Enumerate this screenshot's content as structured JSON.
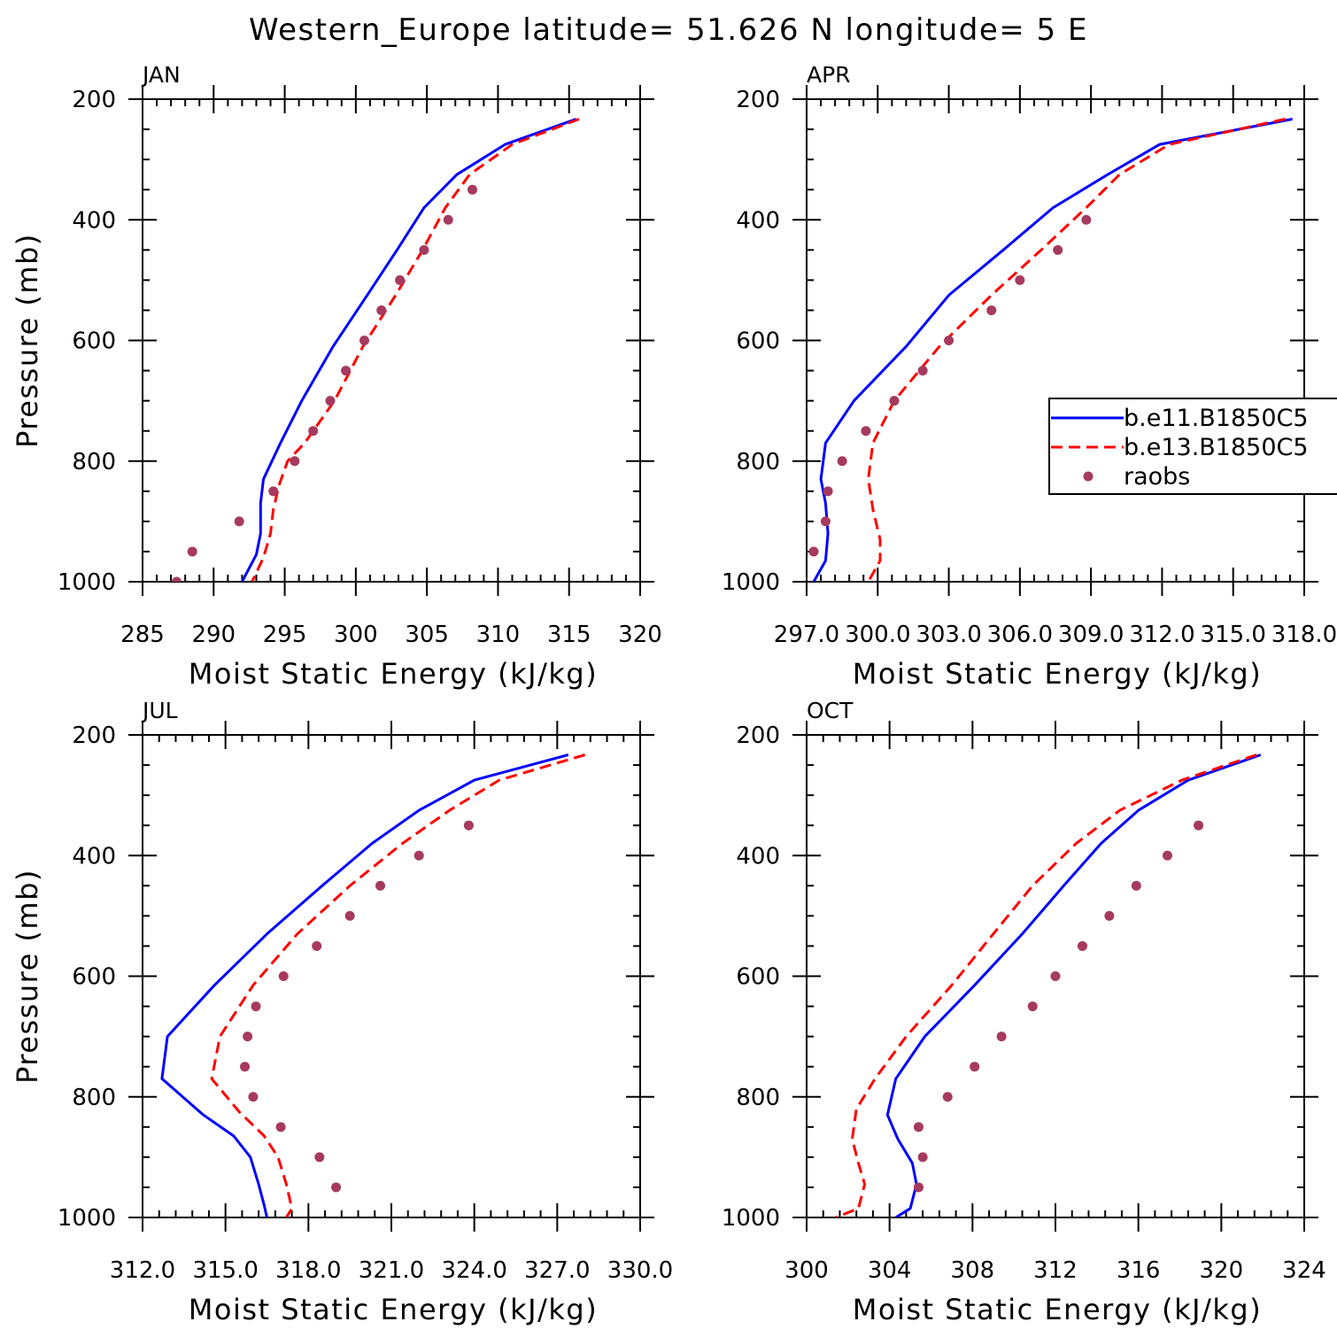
{
  "title": "Western_Europe  latitude= 51.626 N longitude= 5 E",
  "colors": {
    "series1": "#0000ff",
    "series2": "#ff0000",
    "obs": "#a63a5e"
  },
  "legend": {
    "entries": [
      {
        "label": "b.e11.B1850C5",
        "style": "solid",
        "color": "#0000ff"
      },
      {
        "label": "b.e13.B1850C5",
        "style": "dashed",
        "color": "#ff0000"
      },
      {
        "label": "raobs",
        "style": "marker",
        "color": "#a63a5e"
      }
    ]
  },
  "chart_data": [
    {
      "type": "line",
      "panel": "JAN",
      "xlabel": "Moist Static Energy (kJ/kg)",
      "ylabel": "Pressure (mb)",
      "xlim": [
        285,
        320
      ],
      "ylim": [
        200,
        1000
      ],
      "xticks": [
        "285",
        "290",
        "295",
        "300",
        "305",
        "310",
        "315",
        "320"
      ],
      "yticks": [
        "200",
        "400",
        "600",
        "800",
        "1000"
      ],
      "series": [
        {
          "name": "b.e11.B1850C5",
          "x": [
            315.5,
            310.5,
            307.1,
            304.8,
            302.9,
            300.8,
            298.4,
            296.2,
            294.7,
            293.5,
            293.3,
            293.3,
            293.0,
            292.0
          ],
          "y": [
            233,
            275,
            325,
            380,
            450,
            525,
            610,
            700,
            770,
            830,
            870,
            920,
            955,
            1000
          ]
        },
        {
          "name": "b.e13.B1850C5",
          "x": [
            315.7,
            311.0,
            308.0,
            306.3,
            304.7,
            302.8,
            300.5,
            298.5,
            296.4,
            295.2,
            294.6,
            294.2,
            294.0,
            293.5,
            292.7
          ],
          "y": [
            233,
            275,
            325,
            380,
            450,
            525,
            610,
            700,
            770,
            800,
            840,
            880,
            920,
            960,
            1000
          ]
        },
        {
          "name": "raobs",
          "x": [
            308.2,
            306.5,
            304.8,
            303.1,
            301.8,
            300.6,
            299.3,
            298.2,
            297.0,
            295.7,
            294.2,
            291.8,
            288.5,
            287.4
          ],
          "y": [
            350,
            400,
            450,
            500,
            550,
            600,
            650,
            700,
            750,
            800,
            850,
            900,
            950,
            1000
          ]
        }
      ]
    },
    {
      "type": "line",
      "panel": "APR",
      "xlabel": "Moist Static Energy (kJ/kg)",
      "ylabel": "",
      "xlim": [
        297.0,
        318.0
      ],
      "ylim": [
        200,
        1000
      ],
      "xticks": [
        "297.0",
        "300.0",
        "303.0",
        "306.0",
        "309.0",
        "312.0",
        "315.0",
        "318.0"
      ],
      "yticks": [
        "200",
        "400",
        "600",
        "800",
        "1000"
      ],
      "series": [
        {
          "name": "b.e11.B1850C5",
          "x": [
            317.5,
            311.9,
            309.7,
            307.4,
            305.3,
            303.0,
            301.2,
            299.0,
            297.8,
            297.6,
            297.8,
            297.9,
            297.8,
            297.3
          ],
          "y": [
            233,
            275,
            325,
            380,
            450,
            525,
            610,
            700,
            770,
            830,
            870,
            920,
            965,
            1000
          ]
        },
        {
          "name": "b.e13.B1850C5",
          "x": [
            317.2,
            312.3,
            310.2,
            308.8,
            306.9,
            304.8,
            302.6,
            300.7,
            299.8,
            299.6,
            299.8,
            300.1,
            300.1,
            299.6
          ],
          "y": [
            233,
            275,
            325,
            380,
            450,
            525,
            610,
            700,
            770,
            830,
            880,
            930,
            965,
            1000
          ]
        },
        {
          "name": "raobs",
          "x": [
            308.8,
            307.6,
            306.0,
            304.8,
            303.0,
            301.9,
            300.7,
            299.5,
            298.5,
            297.9,
            297.8,
            297.3
          ],
          "y": [
            400,
            450,
            500,
            550,
            600,
            650,
            700,
            750,
            800,
            850,
            900,
            950
          ]
        }
      ]
    },
    {
      "type": "line",
      "panel": "JUL",
      "xlabel": "Moist Static Energy (kJ/kg)",
      "ylabel": "Pressure (mb)",
      "xlim": [
        312.0,
        330.0
      ],
      "ylim": [
        200,
        1000
      ],
      "xticks": [
        "312.0",
        "315.0",
        "318.0",
        "321.0",
        "324.0",
        "327.0",
        "330.0"
      ],
      "yticks": [
        "200",
        "400",
        "600",
        "800",
        "1000"
      ],
      "series": [
        {
          "name": "b.e11.B1850C5",
          "x": [
            327.4,
            324.0,
            322.0,
            320.3,
            318.5,
            316.5,
            314.6,
            312.9,
            312.7,
            314.2,
            315.3,
            315.9,
            316.2,
            316.4,
            316.5
          ],
          "y": [
            233,
            275,
            325,
            380,
            450,
            530,
            615,
            700,
            770,
            830,
            865,
            900,
            945,
            980,
            1000
          ]
        },
        {
          "name": "b.e13.B1850C5",
          "x": [
            328.0,
            324.9,
            323.1,
            321.4,
            319.5,
            317.6,
            316.0,
            314.8,
            314.5,
            315.5,
            316.4,
            316.9,
            317.2,
            317.4,
            317.2
          ],
          "y": [
            233,
            275,
            325,
            380,
            450,
            530,
            615,
            700,
            770,
            825,
            865,
            900,
            945,
            985,
            1000
          ]
        },
        {
          "name": "raobs",
          "x": [
            323.8,
            322.0,
            320.6,
            319.5,
            318.3,
            317.1,
            316.1,
            315.8,
            315.7,
            316.0,
            317.0,
            318.4,
            319.0
          ],
          "y": [
            350,
            400,
            450,
            500,
            550,
            600,
            650,
            700,
            750,
            800,
            850,
            900,
            950
          ]
        }
      ]
    },
    {
      "type": "line",
      "panel": "OCT",
      "xlabel": "Moist Static Energy (kJ/kg)",
      "ylabel": "",
      "xlim": [
        300,
        324
      ],
      "ylim": [
        200,
        1000
      ],
      "xticks": [
        "300",
        "304",
        "308",
        "312",
        "316",
        "320",
        "324"
      ],
      "yticks": [
        "200",
        "400",
        "600",
        "800",
        "1000"
      ],
      "series": [
        {
          "name": "b.e11.B1850C5",
          "x": [
            321.9,
            318.4,
            316.0,
            314.2,
            312.4,
            310.4,
            308.1,
            305.7,
            304.3,
            303.9,
            304.4,
            305.1,
            305.3,
            305.0,
            304.3
          ],
          "y": [
            233,
            275,
            325,
            380,
            450,
            530,
            615,
            700,
            770,
            830,
            870,
            910,
            945,
            985,
            1000
          ]
        },
        {
          "name": "b.e13.B1850C5",
          "x": [
            321.7,
            318.1,
            315.1,
            313.0,
            310.9,
            309.0,
            307.0,
            304.8,
            303.3,
            302.4,
            302.2,
            302.5,
            302.8,
            302.5,
            301.4
          ],
          "y": [
            233,
            275,
            325,
            380,
            450,
            530,
            615,
            700,
            770,
            820,
            870,
            910,
            945,
            985,
            1000
          ]
        },
        {
          "name": "raobs",
          "x": [
            318.9,
            317.4,
            315.9,
            314.6,
            313.3,
            312.0,
            310.9,
            309.4,
            308.1,
            306.8,
            305.4,
            305.6,
            305.4
          ],
          "y": [
            350,
            400,
            450,
            500,
            550,
            600,
            650,
            700,
            750,
            800,
            850,
            900,
            950
          ]
        }
      ]
    }
  ]
}
